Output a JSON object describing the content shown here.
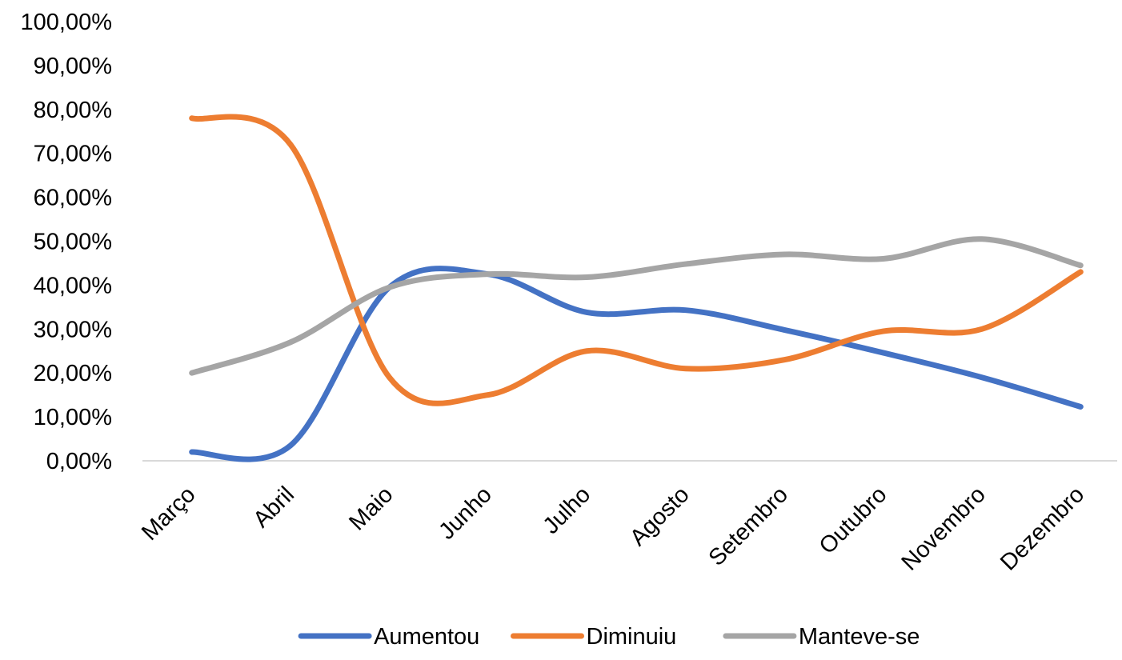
{
  "chart_data": {
    "type": "line",
    "title": "",
    "xlabel": "",
    "ylabel": "",
    "categories": [
      "Março",
      "Abril",
      "Maio",
      "Junho",
      "Julho",
      "Agosto",
      "Setembro",
      "Outubro",
      "Novembro",
      "Dezembro"
    ],
    "series": [
      {
        "name": "Aumentou",
        "color": "#4472C4",
        "values": [
          2.0,
          3.5,
          39.5,
          42.5,
          33.8,
          34.3,
          29.8,
          24.6,
          19.0,
          12.3
        ]
      },
      {
        "name": "Diminuiu",
        "color": "#ED7D31",
        "values": [
          78.0,
          72.0,
          19.0,
          15.0,
          25.0,
          21.0,
          23.0,
          29.5,
          30.0,
          43.0
        ]
      },
      {
        "name": "Manteve-se",
        "color": "#A5A5A5",
        "values": [
          20.0,
          27.0,
          39.5,
          42.5,
          41.8,
          44.8,
          47.0,
          46.0,
          50.5,
          44.5
        ]
      }
    ],
    "ylim": [
      0,
      100
    ],
    "ytick_values": [
      0,
      10,
      20,
      30,
      40,
      50,
      60,
      70,
      80,
      90,
      100
    ],
    "ytick_labels": [
      "0,00%",
      "10,00%",
      "20,00%",
      "30,00%",
      "40,00%",
      "50,00%",
      "60,00%",
      "70,00%",
      "80,00%",
      "90,00%",
      "100,00%"
    ],
    "grid": false,
    "smooth": true,
    "legend_position": "bottom",
    "axis_color": "#D9D9D9"
  }
}
